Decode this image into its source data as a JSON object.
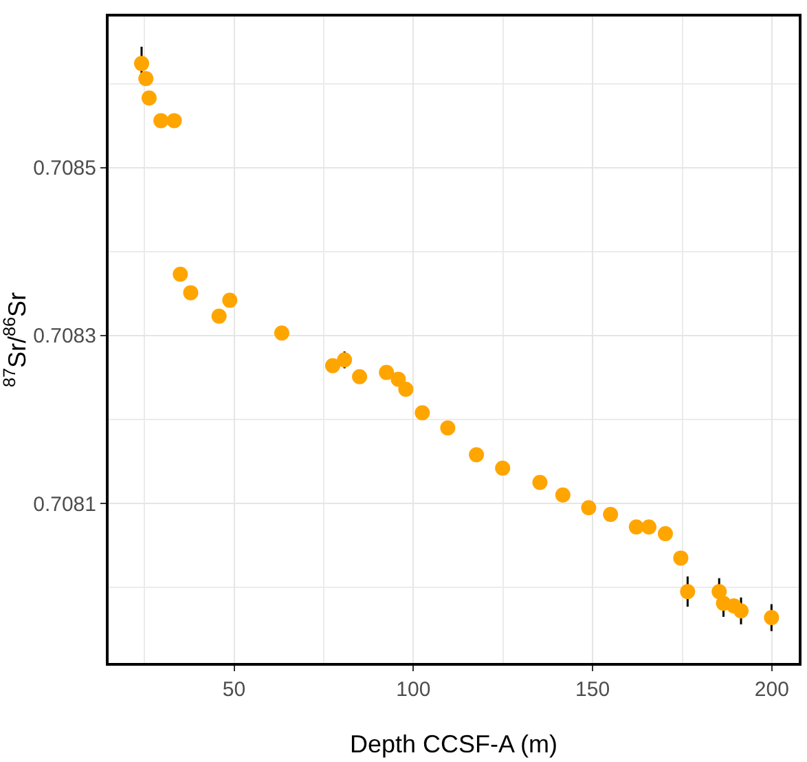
{
  "chart_data": {
    "type": "scatter",
    "xlabel": "Depth CCSF-A (m)",
    "ylabel": "$^{87}$Sr/$^{86}$Sr",
    "x": [
      24.2,
      25.4,
      26.3,
      29.6,
      33.3,
      35,
      37.9,
      45.8,
      48.8,
      63.3,
      77.5,
      80.8,
      85,
      92.5,
      95.8,
      97.9,
      102.5,
      109.6,
      117.6,
      124.9,
      135.3,
      141.7,
      148.9,
      155,
      162.2,
      165.7,
      170.3,
      174.6,
      176.5,
      185.3,
      186.5,
      189.4,
      191.4,
      199.9
    ],
    "series": [
      {
        "color": "#ffa500",
        "values": [
          0.708624,
          0.708606,
          0.708583,
          0.708556,
          0.708556,
          0.708373,
          0.708351,
          0.708323,
          0.708342,
          0.708303,
          0.708264,
          0.708271,
          0.708251,
          0.708256,
          0.708248,
          0.708236,
          0.708208,
          0.70819,
          0.708158,
          0.708142,
          0.708125,
          0.70811,
          0.708095,
          0.708087,
          0.708072,
          0.708072,
          0.708064,
          0.708035,
          0.707995,
          0.707995,
          0.707981,
          0.707978,
          0.707972,
          0.707964
        ],
        "errors": [
          2e-05,
          null,
          null,
          null,
          null,
          null,
          null,
          null,
          null,
          null,
          null,
          1e-05,
          null,
          null,
          null,
          null,
          null,
          null,
          null,
          null,
          null,
          null,
          null,
          null,
          null,
          null,
          null,
          null,
          1.8e-05,
          1.6e-05,
          1.6e-05,
          null,
          1.6e-05,
          1.6e-05
        ]
      }
    ],
    "xlim": [
      15,
      207.5
    ],
    "ylim": [
      0.70791,
      0.70868
    ],
    "xticks": [
      {
        "value": 25,
        "label": null
      },
      50,
      {
        "value": 75,
        "label": null
      },
      100,
      {
        "value": 125,
        "label": null
      },
      150,
      {
        "value": 175,
        "label": null
      },
      200
    ],
    "yticks": [
      {
        "value": 0.708,
        "label": null
      },
      0.7081,
      {
        "value": 0.7082,
        "label": null
      },
      0.7083,
      {
        "value": 0.7084,
        "label": null
      },
      0.7085,
      {
        "value": 0.7086,
        "label": null
      }
    ],
    "grid": true,
    "marker": "circle"
  }
}
